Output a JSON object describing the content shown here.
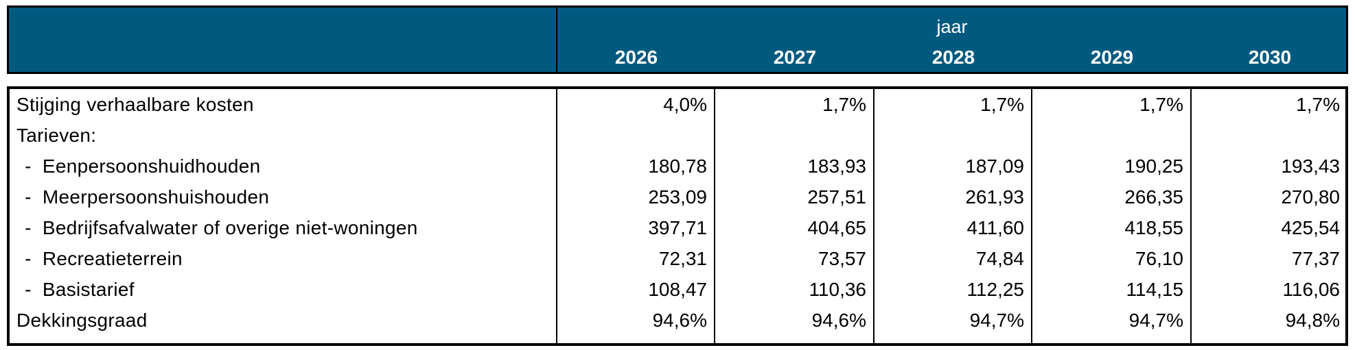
{
  "header": {
    "group_label": "jaar",
    "years": [
      "2026",
      "2027",
      "2028",
      "2029",
      "2030"
    ]
  },
  "rows": [
    {
      "label": "Stijging verhaalbare kosten",
      "values": [
        "4,0%",
        "1,7%",
        "1,7%",
        "1,7%",
        "1,7%"
      ]
    },
    {
      "label": "Tarieven:",
      "values": []
    },
    {
      "label": " -  Eenpersoonshuidhouden",
      "values": [
        "180,78",
        "183,93",
        "187,09",
        "190,25",
        "193,43"
      ]
    },
    {
      "label": " -  Meerpersoonshuishouden",
      "values": [
        "253,09",
        "257,51",
        "261,93",
        "266,35",
        "270,80"
      ]
    },
    {
      "label": " -  Bedrijfsafvalwater of overige niet-woningen",
      "values": [
        "397,71",
        "404,65",
        "411,60",
        "418,55",
        "425,54"
      ]
    },
    {
      "label": " -  Recreatieterrein",
      "values": [
        "72,31",
        "73,57",
        "74,84",
        "76,10",
        "77,37"
      ]
    },
    {
      "label": " -  Basistarief",
      "values": [
        "108,47",
        "110,36",
        "112,25",
        "114,15",
        "116,06"
      ]
    },
    {
      "label": "Dekkingsgraad",
      "values": [
        "94,6%",
        "94,6%",
        "94,7%",
        "94,7%",
        "94,8%"
      ]
    }
  ]
}
